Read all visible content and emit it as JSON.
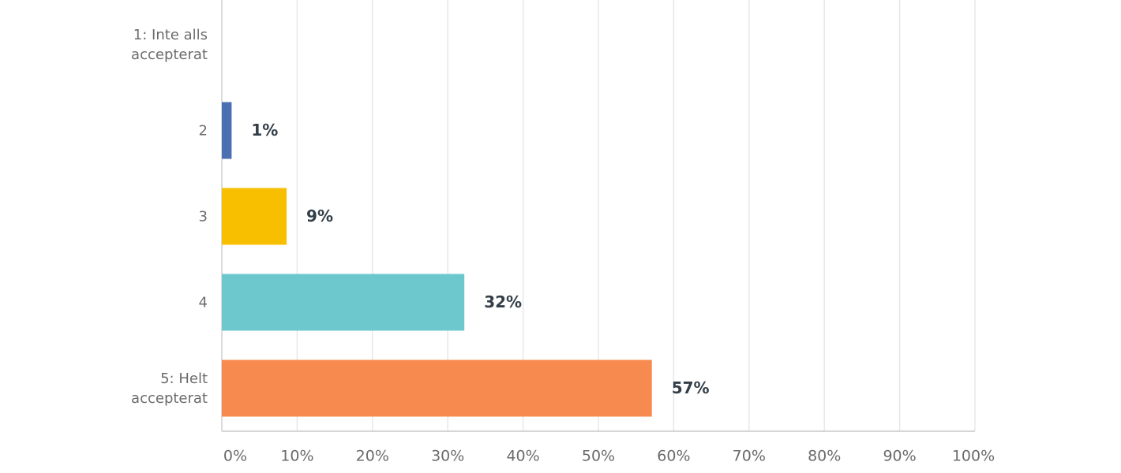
{
  "chart_data": {
    "type": "hbar",
    "categories": [
      "1: Inte alls\naccepterat",
      "2",
      "3",
      "4",
      "5: Helt\naccepterat"
    ],
    "values": [
      0,
      1.3,
      8.6,
      32.2,
      57.1
    ],
    "value_labels": [
      null,
      "1%",
      "9%",
      "32%",
      "57%"
    ],
    "colors": [
      null,
      "#4a6fb3",
      "#f7bf00",
      "#6cc8cc",
      "#f78b4f"
    ],
    "xlim": [
      0,
      100
    ],
    "xticks": [
      {
        "value": 0,
        "label": "0%"
      },
      {
        "value": 10,
        "label": "10%"
      },
      {
        "value": 20,
        "label": "20%"
      },
      {
        "value": 30,
        "label": "30%"
      },
      {
        "value": 40,
        "label": "40%"
      },
      {
        "value": 50,
        "label": "50%"
      },
      {
        "value": 60,
        "label": "60%"
      },
      {
        "value": 70,
        "label": "70%"
      },
      {
        "value": 80,
        "label": "80%"
      },
      {
        "value": 90,
        "label": "90%"
      },
      {
        "value": 100,
        "label": "100%"
      }
    ],
    "grid": true
  }
}
